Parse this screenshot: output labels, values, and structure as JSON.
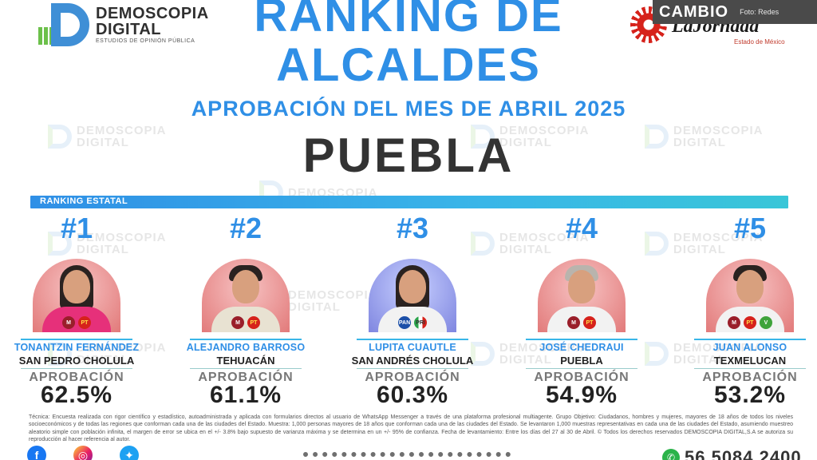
{
  "header": {
    "title_line1": "RANKING DE",
    "title_line2": "ALCALDES",
    "subtitle": "APROBACIÓN DEL MES DE ABRIL 2025",
    "state": "PUEBLA"
  },
  "logo_left": {
    "word1": "DEMOSCOPIA",
    "word2": "DIGITAL",
    "tagline": "ESTUDIOS DE OPINIÓN PÚBLICA"
  },
  "logo_right": {
    "brand": "LaJornada",
    "sub": "Estado de México"
  },
  "tag": {
    "brand": "CAMBIO",
    "credit": "Foto: Redes"
  },
  "watermark": {
    "line1": "DEMOSCOPIA",
    "line2": "DIGITAL"
  },
  "ranking_bar": {
    "label": "RANKING ESTATAL"
  },
  "approval_label": "APROBACIÓN",
  "mayors": [
    {
      "rank": "#1",
      "name": "TONANTZIN FERNÁNDEZ",
      "city": "SAN PEDRO CHOLULA",
      "approval": "62.5%",
      "bg": "red",
      "parties": [
        "morena",
        "PT"
      ]
    },
    {
      "rank": "#2",
      "name": "ALEJANDRO BARROSO",
      "city": "TEHUACÁN",
      "approval": "61.1%",
      "bg": "red",
      "parties": [
        "morena",
        "PT"
      ]
    },
    {
      "rank": "#3",
      "name": "LUPITA CUAUTLE",
      "city": "SAN ANDRÉS CHOLULA",
      "approval": "60.3%",
      "bg": "blue",
      "parties": [
        "PAN",
        "PRI"
      ]
    },
    {
      "rank": "#4",
      "name": "JOSÉ CHEDRAUI",
      "city": "PUEBLA",
      "approval": "54.9%",
      "bg": "red",
      "parties": [
        "morena",
        "PT"
      ]
    },
    {
      "rank": "#5",
      "name": "JUAN ALONSO",
      "city": "TEXMELUCAN",
      "approval": "53.2%",
      "bg": "red",
      "parties": [
        "morena",
        "PT",
        "verde"
      ]
    }
  ],
  "party_short": {
    "morena": "M",
    "PT": "PT",
    "PAN": "PAN",
    "PRI": "PRI",
    "verde": "V"
  },
  "technical_note": "Técnica: Encuesta realizada con rigor científico y estadístico, autoadministrada y aplicada con formularios directos al usuario de WhatsApp Messenger a través de una plataforma profesional multiagente. Grupo Objetivo: Ciudadanos, hombres y mujeres, mayores de 18 años de todos los niveles socioeconómicos y de todas las regiones que conforman cada una de las ciudades del Estado. Muestra: 1,000 personas mayores de 18 años que conforman cada una de las ciudades del Estado. Se levantaron 1,000 muestras representativas en cada una de las ciudades del Estado, asumiendo muestreo aleatorio simple con población infinita, el margen de error se ubica en el +/- 3.8% bajo supuesto de varianza máxima y se determina en un +/- 95% de confianza. Fecha de levantamiento: Entre los días del 27 al 30 de Abril. © Todos los derechos reservados DEMOSCOPIA DIGITAL,S.A se autoriza su reproducción al hacer referencia al autor.",
  "footer": {
    "phone": "56 5084 2400"
  },
  "colors": {
    "accent": "#2f8fe6",
    "teal": "#39b6e8",
    "text_dark": "#222222"
  }
}
